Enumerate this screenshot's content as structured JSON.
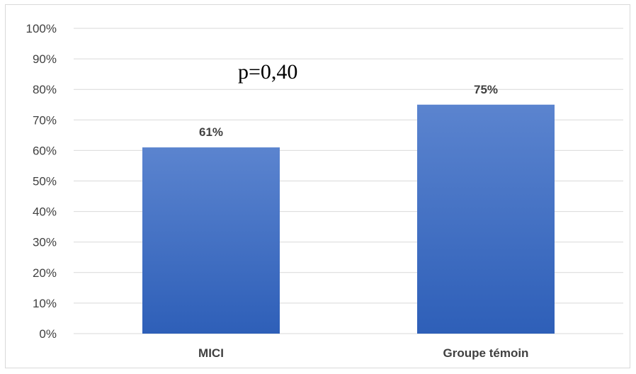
{
  "chart_data": {
    "type": "bar",
    "categories": [
      "MICI",
      "Groupe témoin"
    ],
    "values": [
      61,
      75
    ],
    "data_labels": [
      "61%",
      "75%"
    ],
    "ylim": [
      0,
      100
    ],
    "y_ticks": [
      {
        "value": 0,
        "label": "0%"
      },
      {
        "value": 10,
        "label": "10%"
      },
      {
        "value": 20,
        "label": "20%"
      },
      {
        "value": 30,
        "label": "30%"
      },
      {
        "value": 40,
        "label": "40%"
      },
      {
        "value": 50,
        "label": "50%"
      },
      {
        "value": 60,
        "label": "60%"
      },
      {
        "value": 70,
        "label": "70%"
      },
      {
        "value": 80,
        "label": "80%"
      },
      {
        "value": 90,
        "label": "90%"
      },
      {
        "value": 100,
        "label": "100%"
      }
    ],
    "annotation": "p=0,40",
    "grid": true,
    "legend": "none",
    "bar_color_top": "#5b84cf",
    "bar_color_bottom": "#2e5fb8",
    "grid_color": "#d9d9d9",
    "text_color": "#404040"
  }
}
